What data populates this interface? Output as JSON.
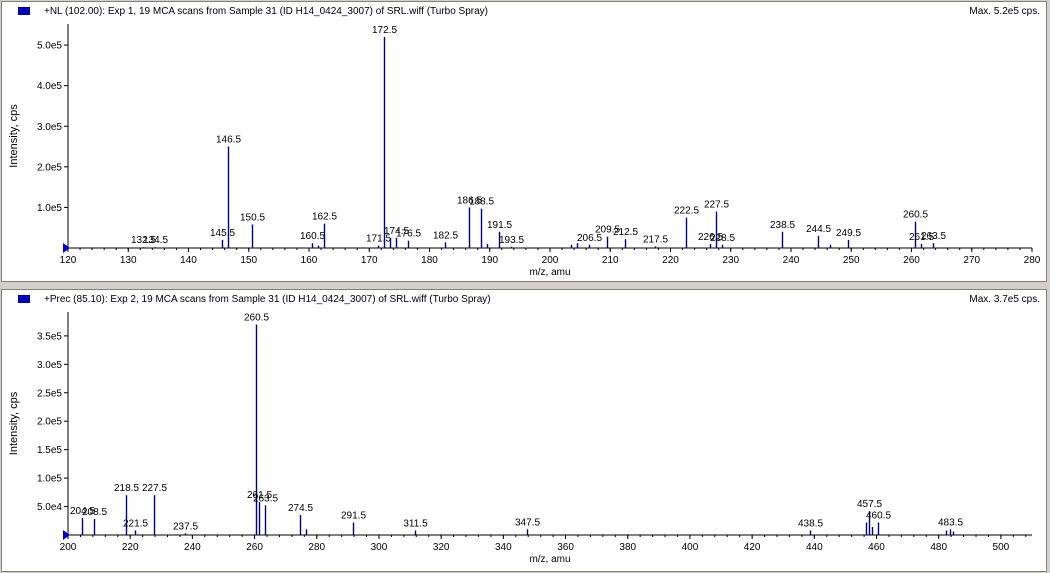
{
  "colors": {
    "peak": "#000080",
    "axis": "#000000",
    "marker": "#0000c8",
    "label": "#000000"
  },
  "panes": [
    {
      "header": {
        "title": "+NL (102.00): Exp 1, 19 MCA scans from Sample 31 (ID H14_0424_3007) of SRL.wiff (Turbo Spray)",
        "max": "Max. 5.2e5 cps."
      },
      "chart_data": {
        "type": "bar",
        "xlabel": "m/z, amu",
        "ylabel": "Intensity, cps",
        "xlim": [
          120,
          280
        ],
        "ylim": [
          0,
          552000
        ],
        "xticks": [
          120,
          130,
          140,
          150,
          160,
          170,
          180,
          190,
          200,
          210,
          220,
          230,
          240,
          250,
          260,
          270,
          280
        ],
        "yticks": [
          {
            "v": 100000,
            "label": "1.0e5"
          },
          {
            "v": 200000,
            "label": "2.0e5"
          },
          {
            "v": 300000,
            "label": "3.0e5"
          },
          {
            "v": 400000,
            "label": "4.0e5"
          },
          {
            "v": 500000,
            "label": "5.0e5"
          }
        ],
        "peaks": [
          {
            "x": 132.5,
            "y": 2000,
            "label": "132.5"
          },
          {
            "x": 134.5,
            "y": 2000,
            "label": "134.5"
          },
          {
            "x": 145.5,
            "y": 20000,
            "label": "145.5"
          },
          {
            "x": 146.5,
            "y": 250000,
            "label": "146.5"
          },
          {
            "x": 150.5,
            "y": 58000,
            "label": "150.5"
          },
          {
            "x": 160.5,
            "y": 12000,
            "label": "160.5"
          },
          {
            "x": 161.5,
            "y": 6000,
            "label": ""
          },
          {
            "x": 162.5,
            "y": 60000,
            "label": "162.5"
          },
          {
            "x": 171.5,
            "y": 6000,
            "label": "171.5"
          },
          {
            "x": 172.5,
            "y": 520000,
            "label": "172.5"
          },
          {
            "x": 173.5,
            "y": 25000,
            "label": ""
          },
          {
            "x": 174.5,
            "y": 25000,
            "label": "174.5"
          },
          {
            "x": 176.5,
            "y": 18000,
            "label": "176.5"
          },
          {
            "x": 182.5,
            "y": 14000,
            "label": "182.5"
          },
          {
            "x": 186.5,
            "y": 100000,
            "label": "186.5"
          },
          {
            "x": 188.5,
            "y": 97000,
            "label": "188.5"
          },
          {
            "x": 189.5,
            "y": 10000,
            "label": ""
          },
          {
            "x": 191.5,
            "y": 40000,
            "label": "191.5"
          },
          {
            "x": 193.5,
            "y": 3000,
            "label": "193.5"
          },
          {
            "x": 203.5,
            "y": 8000,
            "label": ""
          },
          {
            "x": 204.5,
            "y": 12000,
            "label": ""
          },
          {
            "x": 206.5,
            "y": 8000,
            "label": "206.5"
          },
          {
            "x": 209.5,
            "y": 28000,
            "label": "209.5"
          },
          {
            "x": 212.5,
            "y": 22000,
            "label": "212.5"
          },
          {
            "x": 217.5,
            "y": 4000,
            "label": "217.5"
          },
          {
            "x": 222.5,
            "y": 75000,
            "label": "222.5"
          },
          {
            "x": 226.5,
            "y": 10000,
            "label": "226.5"
          },
          {
            "x": 227.5,
            "y": 90000,
            "label": "227.5"
          },
          {
            "x": 228.5,
            "y": 8000,
            "label": "228.5"
          },
          {
            "x": 238.5,
            "y": 40000,
            "label": "238.5"
          },
          {
            "x": 244.5,
            "y": 30000,
            "label": "244.5"
          },
          {
            "x": 246.5,
            "y": 8000,
            "label": ""
          },
          {
            "x": 249.5,
            "y": 20000,
            "label": "249.5"
          },
          {
            "x": 260.5,
            "y": 65000,
            "label": "260.5"
          },
          {
            "x": 261.5,
            "y": 10000,
            "label": "261.5"
          },
          {
            "x": 263.5,
            "y": 12000,
            "label": "263.5"
          }
        ]
      }
    },
    {
      "header": {
        "title": "+Prec (85.10): Exp 2, 19 MCA scans from Sample 31 (ID H14_0424_3007) of SRL.wiff (Turbo Spray)",
        "max": "Max. 3.7e5 cps."
      },
      "chart_data": {
        "type": "bar",
        "xlabel": "m/z, amu",
        "ylabel": "Intensity, cps",
        "xlim": [
          200,
          510
        ],
        "ylim": [
          0,
          392000
        ],
        "xticks": [
          200,
          220,
          240,
          260,
          280,
          300,
          320,
          340,
          360,
          380,
          400,
          420,
          440,
          460,
          480,
          500
        ],
        "yticks": [
          {
            "v": 50000,
            "label": "5.0e4"
          },
          {
            "v": 100000,
            "label": "1.0e5"
          },
          {
            "v": 150000,
            "label": "1.5e5"
          },
          {
            "v": 200000,
            "label": "2.0e5"
          },
          {
            "v": 250000,
            "label": "2.5e5"
          },
          {
            "v": 300000,
            "label": "3.0e5"
          },
          {
            "v": 350000,
            "label": "3.5e5"
          }
        ],
        "peaks": [
          {
            "x": 204.5,
            "y": 30000,
            "label": "204.5"
          },
          {
            "x": 208.5,
            "y": 28000,
            "label": "208.5"
          },
          {
            "x": 218.5,
            "y": 70000,
            "label": "218.5"
          },
          {
            "x": 221.5,
            "y": 8000,
            "label": "221.5"
          },
          {
            "x": 227.5,
            "y": 70000,
            "label": "227.5"
          },
          {
            "x": 237.5,
            "y": 3000,
            "label": "237.5"
          },
          {
            "x": 260.5,
            "y": 370000,
            "label": "260.5"
          },
          {
            "x": 261.5,
            "y": 58000,
            "label": "261.5"
          },
          {
            "x": 263.5,
            "y": 52000,
            "label": "263.5"
          },
          {
            "x": 274.5,
            "y": 35000,
            "label": "274.5"
          },
          {
            "x": 276.5,
            "y": 10000,
            "label": ""
          },
          {
            "x": 291.5,
            "y": 22000,
            "label": "291.5"
          },
          {
            "x": 311.5,
            "y": 8000,
            "label": "311.5"
          },
          {
            "x": 347.5,
            "y": 10000,
            "label": "347.5"
          },
          {
            "x": 438.5,
            "y": 8000,
            "label": "438.5"
          },
          {
            "x": 456.5,
            "y": 22000,
            "label": ""
          },
          {
            "x": 457.5,
            "y": 42000,
            "label": "457.5"
          },
          {
            "x": 458.5,
            "y": 14000,
            "label": ""
          },
          {
            "x": 460.5,
            "y": 22000,
            "label": "460.5"
          },
          {
            "x": 482.5,
            "y": 8000,
            "label": ""
          },
          {
            "x": 483.5,
            "y": 10000,
            "label": "483.5"
          },
          {
            "x": 484.5,
            "y": 6000,
            "label": ""
          }
        ]
      }
    }
  ]
}
